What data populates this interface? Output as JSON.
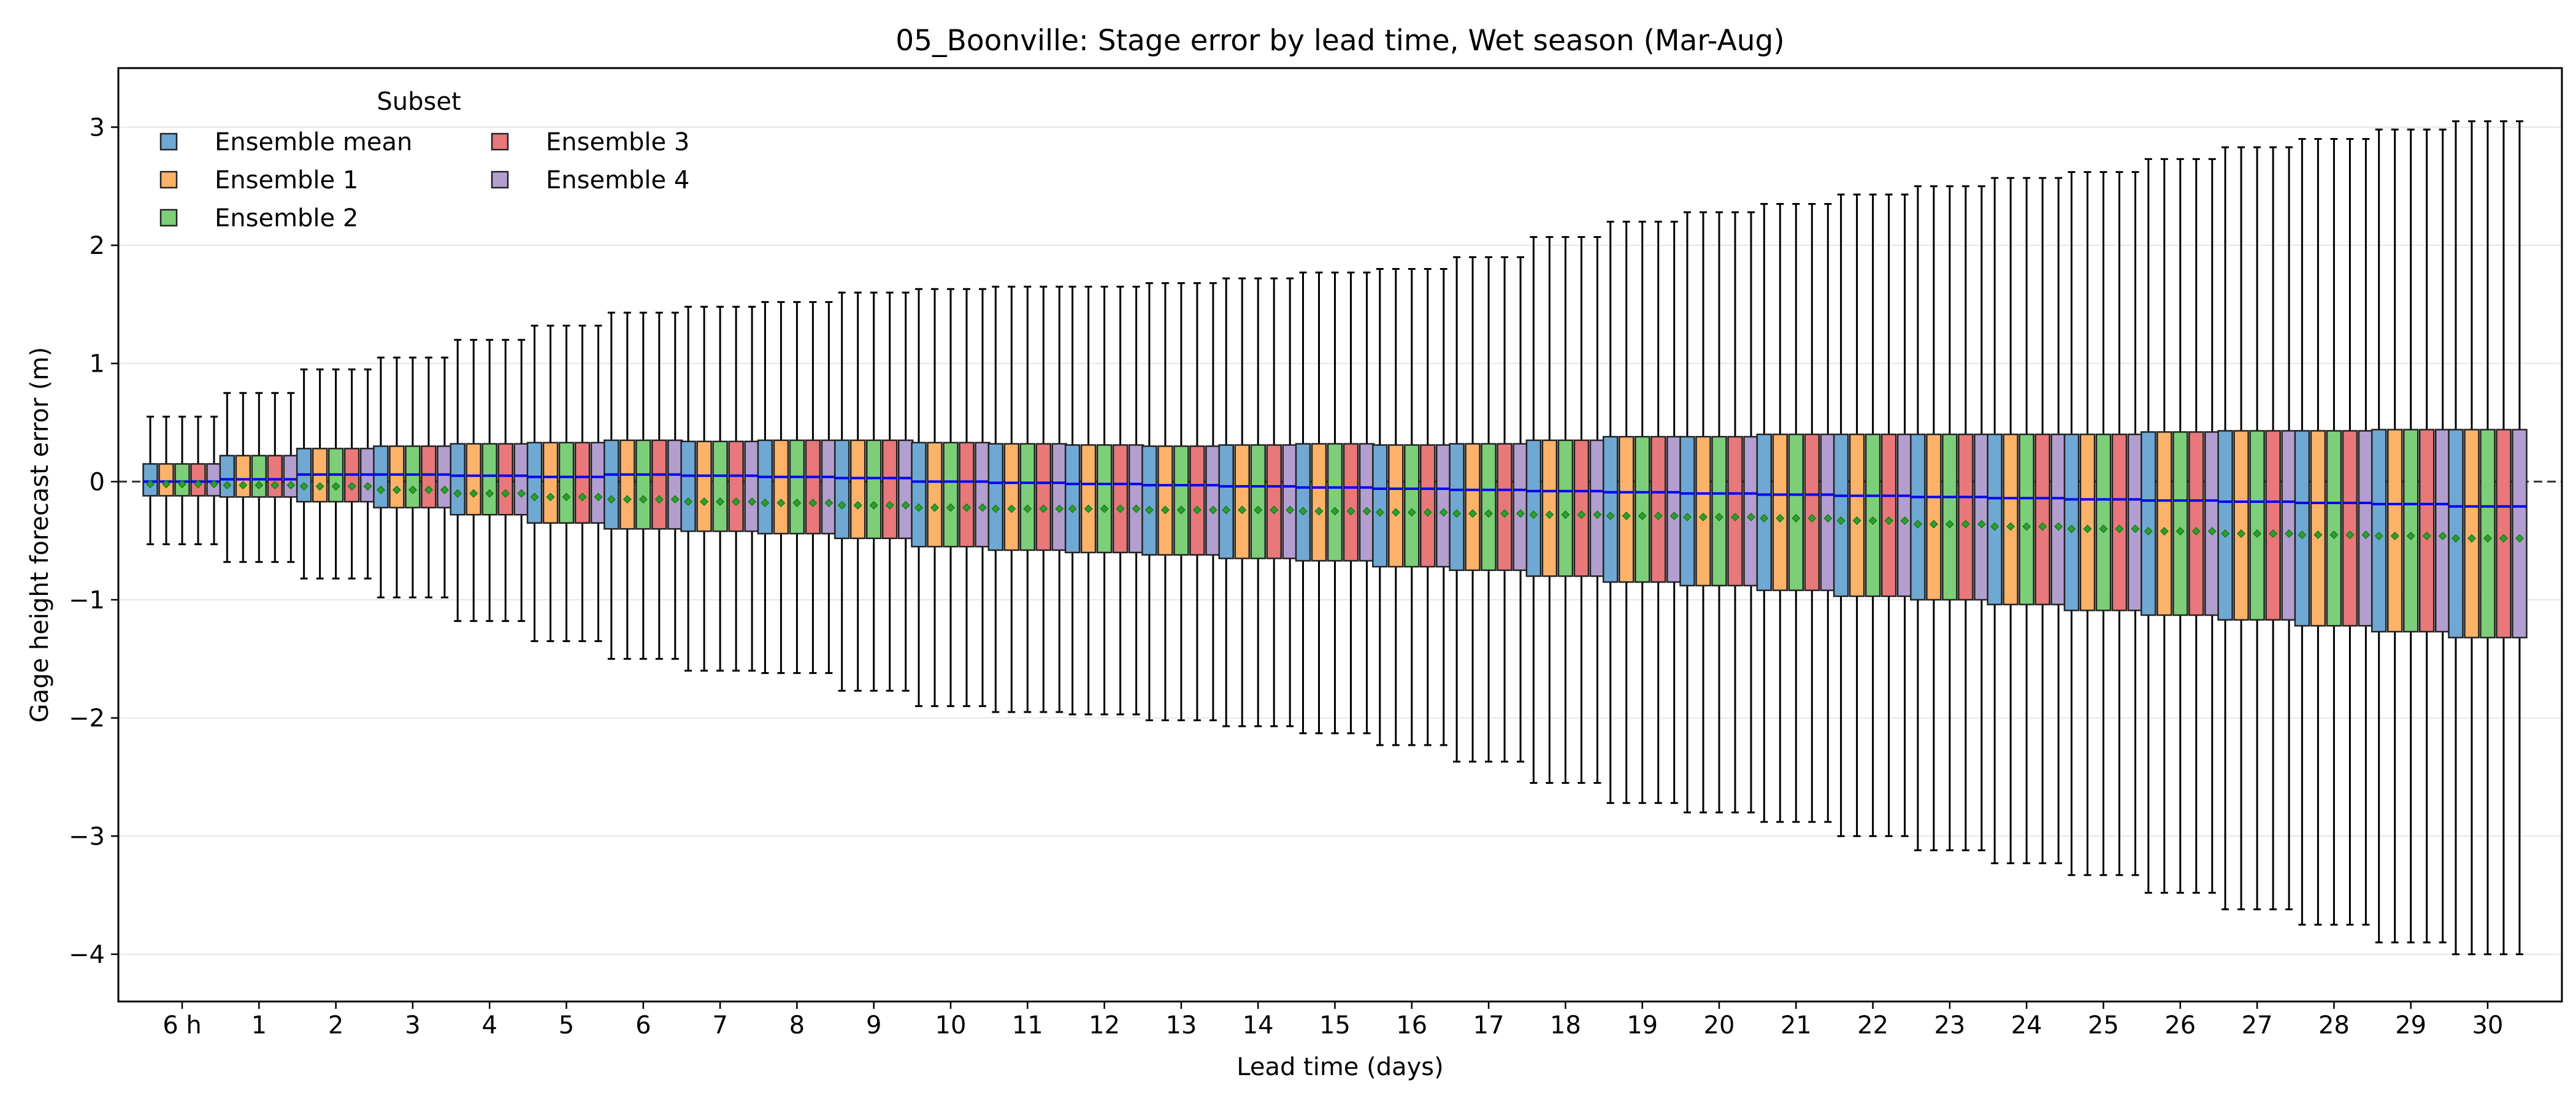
{
  "chart_data": {
    "type": "boxplot",
    "title": "05_Boonville: Stage error by lead time, Wet season (Mar-Aug)",
    "xlabel": "Lead time (days)",
    "ylabel": "Gage height forecast error (m)",
    "ylim": [
      -4.4,
      3.5
    ],
    "yticks": [
      3,
      2,
      1,
      0,
      -1,
      -2,
      -3,
      -4
    ],
    "ytick_labels": [
      "3",
      "2",
      "1",
      "0",
      "−1",
      "−2",
      "−3",
      "−4"
    ],
    "grid": "horizontal",
    "reference_line": {
      "y": 0,
      "style": "dashed"
    },
    "legend": {
      "title": "Subset",
      "position": "top-left",
      "columns": 2
    },
    "categories": [
      "6 h",
      "1",
      "2",
      "3",
      "4",
      "5",
      "6",
      "7",
      "8",
      "9",
      "10",
      "11",
      "12",
      "13",
      "14",
      "15",
      "16",
      "17",
      "18",
      "19",
      "20",
      "21",
      "22",
      "23",
      "24",
      "25",
      "26",
      "27",
      "28",
      "29",
      "30"
    ],
    "series": [
      {
        "name": "Ensemble mean",
        "color": "#6fa8d3"
      },
      {
        "name": "Ensemble 1",
        "color": "#fdb26a"
      },
      {
        "name": "Ensemble 2",
        "color": "#7ccf78"
      },
      {
        "name": "Ensemble 3",
        "color": "#e8787a"
      },
      {
        "name": "Ensemble 4",
        "color": "#b39ed0"
      }
    ],
    "median_color": "#0000ff",
    "mean_marker_color": "#2ca02c",
    "whisker_low": [
      -0.53,
      -0.68,
      -0.82,
      -0.98,
      -1.18,
      -1.35,
      -1.5,
      -1.6,
      -1.62,
      -1.77,
      -1.9,
      -1.95,
      -1.97,
      -2.02,
      -2.07,
      -2.13,
      -2.23,
      -2.37,
      -2.55,
      -2.72,
      -2.8,
      -2.88,
      -3.0,
      -3.12,
      -3.23,
      -3.33,
      -3.48,
      -3.62,
      -3.75,
      -3.9,
      -4.0
    ],
    "q1": [
      -0.12,
      -0.13,
      -0.17,
      -0.22,
      -0.28,
      -0.35,
      -0.4,
      -0.42,
      -0.44,
      -0.48,
      -0.55,
      -0.58,
      -0.6,
      -0.62,
      -0.65,
      -0.67,
      -0.72,
      -0.75,
      -0.8,
      -0.85,
      -0.88,
      -0.92,
      -0.97,
      -1.0,
      -1.04,
      -1.09,
      -1.13,
      -1.17,
      -1.22,
      -1.27,
      -1.32
    ],
    "median": [
      0.0,
      0.02,
      0.06,
      0.06,
      0.05,
      0.04,
      0.06,
      0.05,
      0.04,
      0.03,
      0.0,
      -0.01,
      -0.02,
      -0.03,
      -0.04,
      -0.05,
      -0.06,
      -0.07,
      -0.08,
      -0.09,
      -0.1,
      -0.11,
      -0.12,
      -0.13,
      -0.14,
      -0.15,
      -0.16,
      -0.17,
      -0.18,
      -0.19,
      -0.21
    ],
    "mean": [
      -0.02,
      -0.03,
      -0.04,
      -0.07,
      -0.1,
      -0.13,
      -0.15,
      -0.17,
      -0.18,
      -0.2,
      -0.22,
      -0.23,
      -0.23,
      -0.24,
      -0.24,
      -0.25,
      -0.26,
      -0.27,
      -0.28,
      -0.29,
      -0.3,
      -0.31,
      -0.33,
      -0.36,
      -0.38,
      -0.4,
      -0.42,
      -0.44,
      -0.45,
      -0.46,
      -0.48
    ],
    "q3": [
      0.15,
      0.22,
      0.28,
      0.3,
      0.32,
      0.33,
      0.35,
      0.34,
      0.35,
      0.35,
      0.33,
      0.32,
      0.31,
      0.3,
      0.31,
      0.32,
      0.31,
      0.32,
      0.35,
      0.38,
      0.38,
      0.4,
      0.4,
      0.4,
      0.4,
      0.4,
      0.42,
      0.43,
      0.43,
      0.44,
      0.44
    ],
    "whisker_high": [
      0.55,
      0.75,
      0.95,
      1.05,
      1.2,
      1.32,
      1.43,
      1.48,
      1.52,
      1.6,
      1.63,
      1.65,
      1.65,
      1.68,
      1.72,
      1.77,
      1.8,
      1.9,
      2.07,
      2.2,
      2.28,
      2.35,
      2.43,
      2.5,
      2.57,
      2.62,
      2.73,
      2.83,
      2.9,
      2.98,
      3.05
    ]
  }
}
